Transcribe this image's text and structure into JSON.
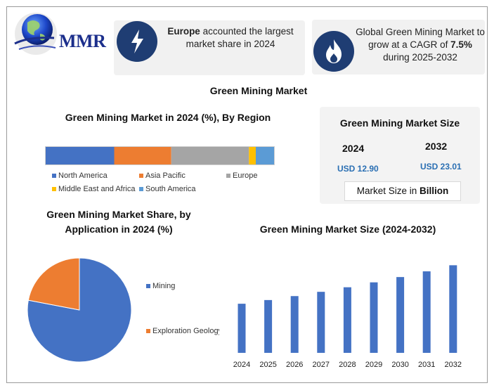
{
  "logo": {
    "text": "MMR"
  },
  "highlights": {
    "europe": {
      "bold": "Europe",
      "rest": " accounted the largest market share in 2024",
      "icon": "lightning-icon"
    },
    "cagr": {
      "prefix": "Global Green Mining Market to grow at a CAGR of ",
      "bold": "7.5%",
      "suffix": " during 2025-2032",
      "icon": "flame-icon"
    }
  },
  "main_title": "Green Mining Market",
  "market_size": {
    "title": "Green Mining Market Size",
    "year_start": "2024",
    "value_start": "USD 12.90",
    "year_end": "2032",
    "value_end": "USD 23.01",
    "unit_prefix": "Market Size in ",
    "unit_bold": "Billion"
  },
  "chart_data": [
    {
      "type": "bar",
      "title": "Green Mining Market in 2024 (%), By Region",
      "orientation": "horizontal-stacked",
      "series": [
        {
          "name": "North America",
          "value": 30,
          "color": "#4472c4"
        },
        {
          "name": "Asia Pacific",
          "value": 25,
          "color": "#ed7d31"
        },
        {
          "name": "Europe",
          "value": 34,
          "color": "#a5a5a5"
        },
        {
          "name": "Middle East and Africa",
          "value": 3,
          "color": "#ffc000"
        },
        {
          "name": "South America",
          "value": 8,
          "color": "#5b9bd5"
        }
      ],
      "legend": "bottom"
    },
    {
      "type": "pie",
      "title": "Green Mining Market Share, by Application in 2024 (%)",
      "slices": [
        {
          "name": "Mining",
          "value": 78,
          "color": "#4472c4"
        },
        {
          "name": "Exploration Geology",
          "value": 22,
          "color": "#ed7d31"
        }
      ],
      "legend": "right"
    },
    {
      "type": "bar",
      "title": "Green Mining Market Size (2024-2032)",
      "categories": [
        "2024",
        "2025",
        "2026",
        "2027",
        "2028",
        "2029",
        "2030",
        "2031",
        "2032"
      ],
      "values": [
        12.9,
        13.87,
        14.91,
        16.03,
        17.23,
        18.52,
        19.91,
        21.41,
        23.01
      ],
      "color": "#4472c4",
      "ylim": [
        0,
        24
      ],
      "grid": false
    }
  ]
}
